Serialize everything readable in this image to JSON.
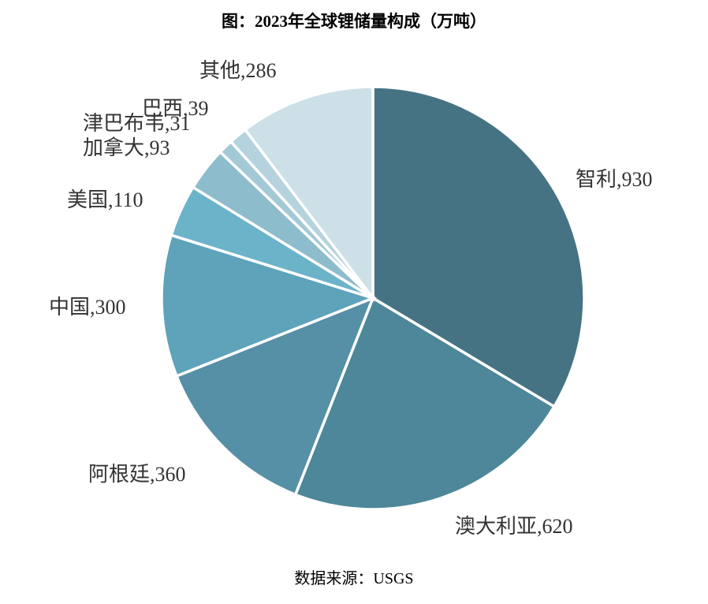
{
  "chart_data": {
    "type": "pie",
    "title": "图：2023年全球锂储量构成（万吨）",
    "source": "数据来源：USGS",
    "categories": [
      "智利",
      "澳大利亚",
      "阿根廷",
      "中国",
      "美国",
      "加拿大",
      "津巴布韦",
      "巴西",
      "其他"
    ],
    "values": [
      930,
      620,
      360,
      300,
      110,
      93,
      31,
      39,
      286
    ],
    "label_separator": ",",
    "colors": [
      "#467383",
      "#4d8799",
      "#5690a6",
      "#5ea3ba",
      "#6bb3c9",
      "#8dbccd",
      "#a4c9d6",
      "#b5d3de",
      "#cde0e8"
    ]
  }
}
